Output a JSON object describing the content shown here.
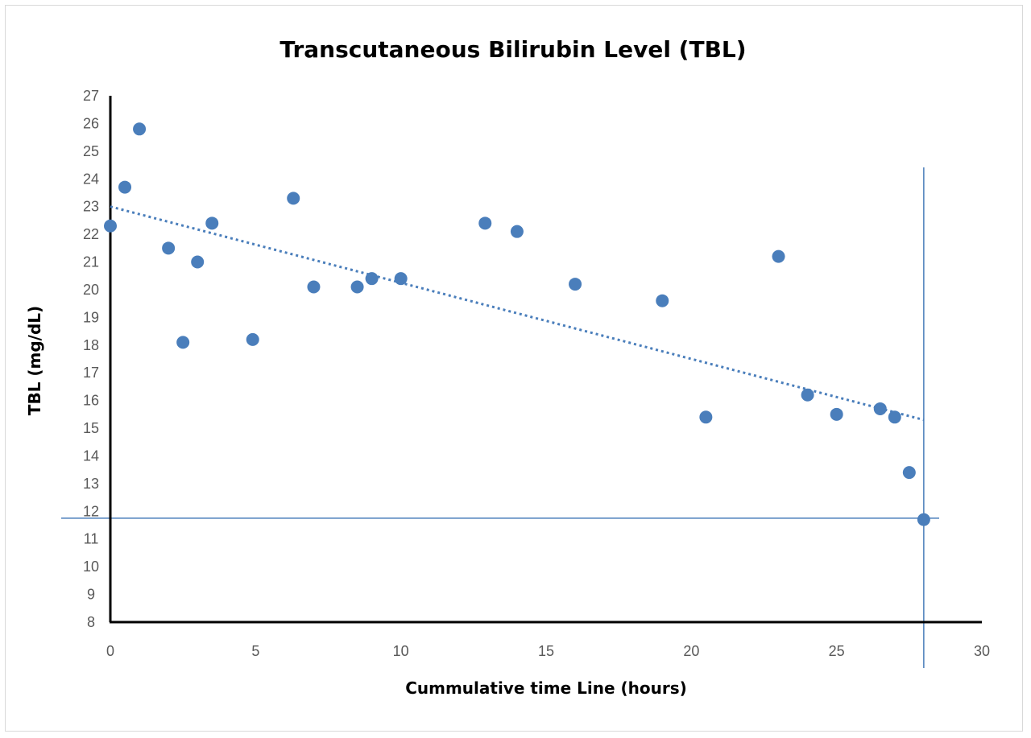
{
  "chart_data": {
    "type": "scatter",
    "title": "Transcutaneous Bilirubin Level (TBL)",
    "xlabel": "Cummulative time Line (hours)",
    "ylabel": "TBL (mg/dL)",
    "xlim": [
      0,
      30
    ],
    "ylim": [
      8,
      27
    ],
    "x_ticks": [
      0,
      5,
      10,
      15,
      20,
      25,
      30
    ],
    "y_ticks": [
      8,
      9,
      10,
      11,
      12,
      13,
      14,
      15,
      16,
      17,
      18,
      19,
      20,
      21,
      22,
      23,
      24,
      25,
      26,
      27
    ],
    "grid": false,
    "legend": "none",
    "marker_color": "#4a7ebb",
    "series": [
      {
        "points": [
          {
            "x": 0,
            "y": 22.3
          },
          {
            "x": 0.5,
            "y": 23.7
          },
          {
            "x": 1,
            "y": 25.8
          },
          {
            "x": 2,
            "y": 21.5
          },
          {
            "x": 2.5,
            "y": 18.1
          },
          {
            "x": 3,
            "y": 21.0
          },
          {
            "x": 3.5,
            "y": 22.4
          },
          {
            "x": 4.9,
            "y": 18.2
          },
          {
            "x": 6.3,
            "y": 23.3
          },
          {
            "x": 7,
            "y": 20.1
          },
          {
            "x": 8.5,
            "y": 20.1
          },
          {
            "x": 9,
            "y": 20.4
          },
          {
            "x": 10,
            "y": 20.4
          },
          {
            "x": 12.9,
            "y": 22.4
          },
          {
            "x": 14,
            "y": 22.1
          },
          {
            "x": 16,
            "y": 20.2
          },
          {
            "x": 19,
            "y": 19.6
          },
          {
            "x": 20.5,
            "y": 15.4
          },
          {
            "x": 23,
            "y": 21.2
          },
          {
            "x": 24,
            "y": 16.2
          },
          {
            "x": 25,
            "y": 15.5
          },
          {
            "x": 26.5,
            "y": 15.7
          },
          {
            "x": 27,
            "y": 15.4
          },
          {
            "x": 27.5,
            "y": 13.4
          },
          {
            "x": 28,
            "y": 11.7
          }
        ]
      }
    ],
    "trendline": {
      "style": "dotted",
      "color": "#4a7ebb",
      "x_start": 0,
      "y_start": 23.0,
      "x_end": 28,
      "y_end": 15.3
    },
    "reference_lines": [
      {
        "orientation": "horizontal",
        "y": 11.75,
        "color": "#4a7ebb"
      },
      {
        "orientation": "vertical",
        "x": 28,
        "color": "#4a7ebb"
      }
    ]
  }
}
